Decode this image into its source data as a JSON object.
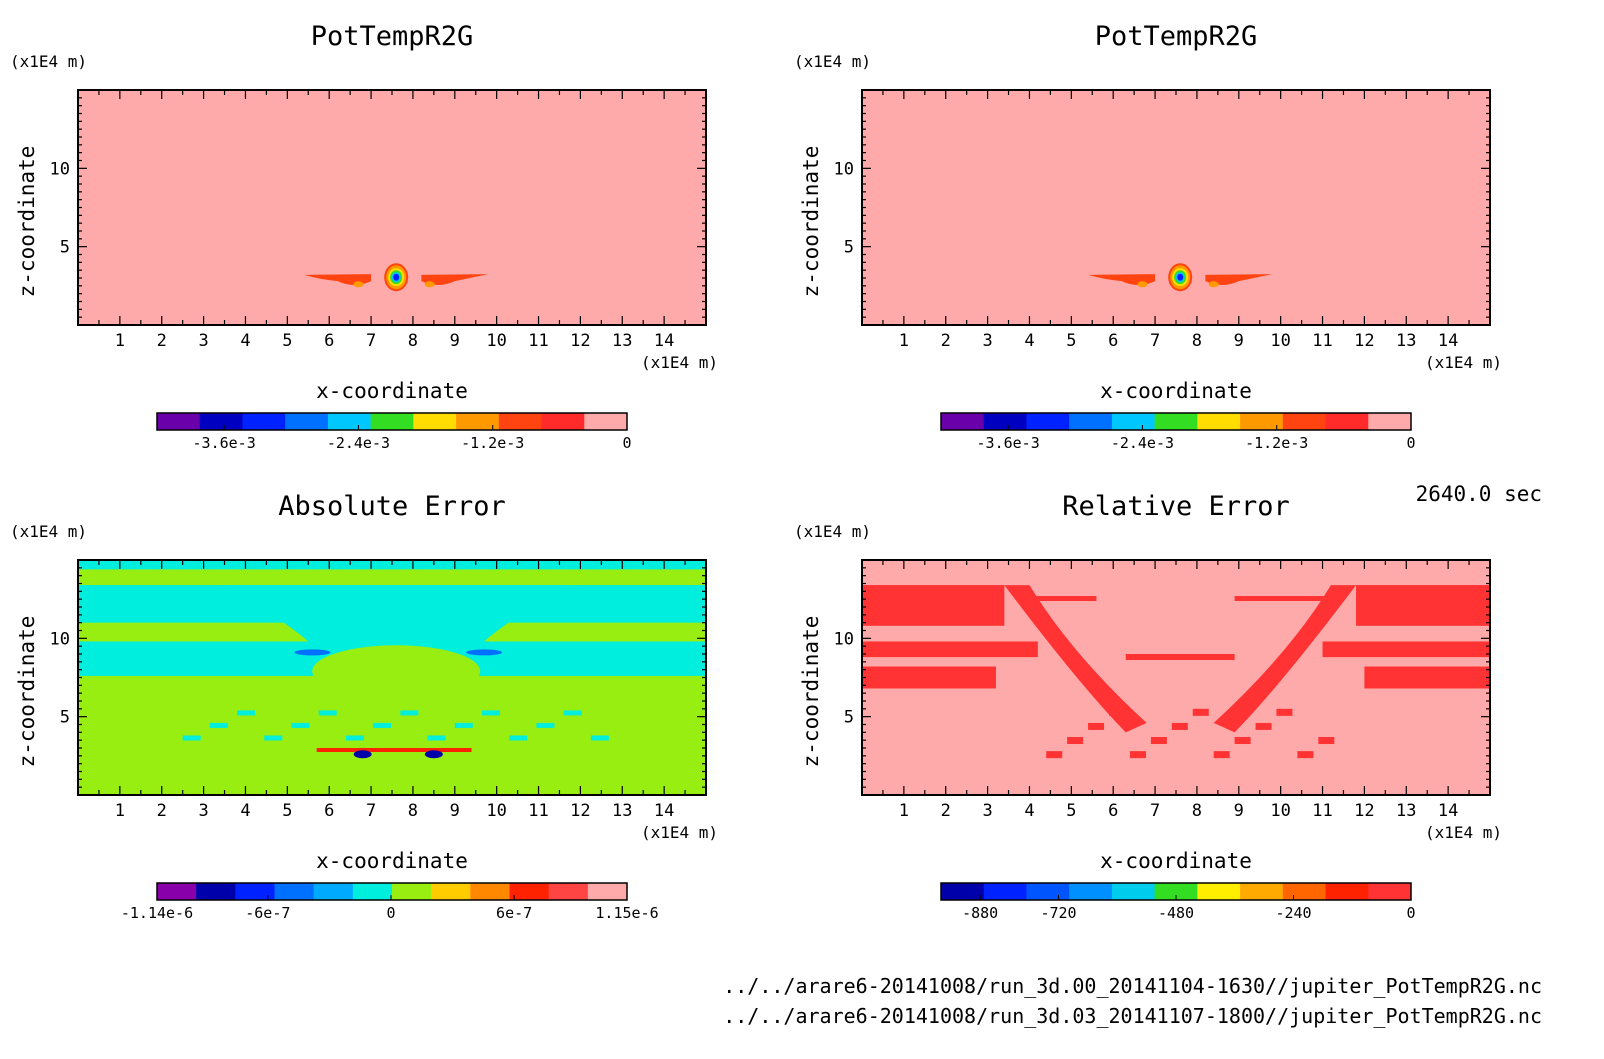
{
  "time_label": "2640.0 sec",
  "footer_lines": [
    "../../arare6-20141008/run_3d.00_20141104-1630//jupiter_PotTempR2G.nc",
    "../../arare6-20141008/run_3d.03_20141107-1800//jupiter_PotTempR2G.nc"
  ],
  "chart_data": [
    {
      "type": "heatmap",
      "title": "PotTempR2G",
      "xlabel": "x-coordinate",
      "ylabel": "z-coordinate",
      "x_unit": "(x1E4 m)",
      "y_unit": "(x1E4 m)",
      "xlim": [
        0,
        15
      ],
      "ylim": [
        0,
        15
      ],
      "x_ticks": [
        1,
        2,
        3,
        4,
        5,
        6,
        7,
        8,
        9,
        10,
        11,
        12,
        13,
        14
      ],
      "y_ticks": [
        5,
        10
      ],
      "field": "potential_temperature",
      "background_color": "#ffaaaa",
      "colorbar": {
        "colors": [
          "#6a00aa",
          "#0000c0",
          "#0022ff",
          "#0070ff",
          "#00c8ff",
          "#33dd22",
          "#ffdd00",
          "#ff9900",
          "#ff4411",
          "#ff2a2a",
          "#ffaaaa"
        ],
        "range": [
          -0.0042,
          0
        ],
        "tick_labels": [
          "-3.6e-3",
          "-2.4e-3",
          "-1.2e-3",
          "0"
        ],
        "tick_values": [
          -0.0036,
          -0.0024,
          -0.0012,
          0
        ]
      }
    },
    {
      "type": "heatmap",
      "title": "PotTempR2G",
      "xlabel": "x-coordinate",
      "ylabel": "z-coordinate",
      "x_unit": "(x1E4 m)",
      "y_unit": "(x1E4 m)",
      "xlim": [
        0,
        15
      ],
      "ylim": [
        0,
        15
      ],
      "x_ticks": [
        1,
        2,
        3,
        4,
        5,
        6,
        7,
        8,
        9,
        10,
        11,
        12,
        13,
        14
      ],
      "y_ticks": [
        5,
        10
      ],
      "field": "potential_temperature",
      "background_color": "#ffaaaa",
      "colorbar": {
        "colors": [
          "#6a00aa",
          "#0000c0",
          "#0022ff",
          "#0070ff",
          "#00c8ff",
          "#33dd22",
          "#ffdd00",
          "#ff9900",
          "#ff4411",
          "#ff2a2a",
          "#ffaaaa"
        ],
        "range": [
          -0.0042,
          0
        ],
        "tick_labels": [
          "-3.6e-3",
          "-2.4e-3",
          "-1.2e-3",
          "0"
        ],
        "tick_values": [
          -0.0036,
          -0.0024,
          -0.0012,
          0
        ]
      }
    },
    {
      "type": "heatmap",
      "title": "Absolute Error",
      "xlabel": "x-coordinate",
      "ylabel": "z-coordinate",
      "x_unit": "(x1E4 m)",
      "y_unit": "(x1E4 m)",
      "xlim": [
        0,
        15
      ],
      "ylim": [
        0,
        15
      ],
      "x_ticks": [
        1,
        2,
        3,
        4,
        5,
        6,
        7,
        8,
        9,
        10,
        11,
        12,
        13,
        14
      ],
      "y_ticks": [
        5,
        10
      ],
      "field": "absolute_error",
      "background_color": "#99ee11",
      "colorbar": {
        "colors": [
          "#8800aa",
          "#0000aa",
          "#0022ff",
          "#0070ff",
          "#00aaff",
          "#00eedd",
          "#99ee11",
          "#ffcc00",
          "#ff8800",
          "#ff2200",
          "#ff4444",
          "#ffaaaa"
        ],
        "range": [
          -1.14e-06,
          1.15e-06
        ],
        "tick_labels": [
          "-1.14e-6",
          "-6e-7",
          "0",
          "6e-7",
          "1.15e-6"
        ],
        "tick_values": [
          -1.14e-06,
          -6e-07,
          0,
          6e-07,
          1.15e-06
        ]
      }
    },
    {
      "type": "heatmap",
      "title": "Relative Error",
      "xlabel": "x-coordinate",
      "ylabel": "z-coordinate",
      "x_unit": "(x1E4 m)",
      "y_unit": "(x1E4 m)",
      "xlim": [
        0,
        15
      ],
      "ylim": [
        0,
        15
      ],
      "x_ticks": [
        1,
        2,
        3,
        4,
        5,
        6,
        7,
        8,
        9,
        10,
        11,
        12,
        13,
        14
      ],
      "y_ticks": [
        5,
        10
      ],
      "field": "relative_error",
      "background_color": "#ffaaaa",
      "colorbar": {
        "colors": [
          "#0000aa",
          "#0022ff",
          "#0055ff",
          "#0090ff",
          "#00ccee",
          "#33dd22",
          "#ffee00",
          "#ffaa00",
          "#ff6600",
          "#ff2200",
          "#ff3333"
        ],
        "range": [
          -960,
          0
        ],
        "tick_labels": [
          "-880",
          "-720",
          "-480",
          "-240",
          "0"
        ],
        "tick_values": [
          -880,
          -720,
          -480,
          -240,
          0
        ]
      }
    }
  ]
}
